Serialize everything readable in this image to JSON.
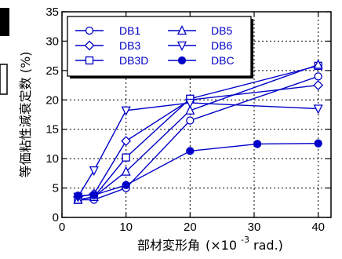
{
  "chart_data": {
    "type": "line",
    "xlabel_main": "部材変形角",
    "xlabel_unit": "(×10",
    "xlabel_exp": "-3",
    "xlabel_tail": "rad.)",
    "ylabel": "等価粘性減衰定数 (%)",
    "xlim": [
      0,
      42
    ],
    "ylim": [
      0,
      35
    ],
    "x_ticks": [
      0,
      10,
      20,
      30,
      40
    ],
    "y_ticks": [
      0,
      5,
      10,
      15,
      20,
      25,
      30,
      35
    ],
    "grid": true,
    "grid_style": "dotted",
    "legend_position": "top-left",
    "line_color": "#0000c8",
    "series": [
      {
        "name": "DB1",
        "marker": "circle-open",
        "x": [
          2.5,
          5,
          10,
          20,
          40
        ],
        "y": [
          3.0,
          3.0,
          5.0,
          16.5,
          24.0
        ]
      },
      {
        "name": "DB3",
        "marker": "diamond-open",
        "x": [
          2.5,
          5,
          10,
          20,
          40
        ],
        "y": [
          3.5,
          4.0,
          13.0,
          20.0,
          22.5
        ]
      },
      {
        "name": "DB3D",
        "marker": "square-open",
        "x": [
          2.5,
          5,
          10,
          20,
          40
        ],
        "y": [
          3.0,
          3.5,
          10.2,
          20.2,
          25.8
        ]
      },
      {
        "name": "DB5",
        "marker": "triangle-up-open",
        "x": [
          2.5,
          5,
          10,
          20,
          40
        ],
        "y": [
          3.0,
          3.5,
          7.8,
          18.2,
          26.0
        ]
      },
      {
        "name": "DB6",
        "marker": "triangle-down-open",
        "x": [
          2.5,
          5,
          10,
          20,
          40
        ],
        "y": [
          3.5,
          8.0,
          18.2,
          19.5,
          18.5
        ]
      },
      {
        "name": "DBC",
        "marker": "circle-filled",
        "x": [
          2.5,
          5,
          10,
          20,
          30.5,
          40
        ],
        "y": [
          3.7,
          3.8,
          5.5,
          11.3,
          12.5,
          12.6
        ]
      }
    ],
    "legend_layout": [
      [
        "DB1",
        "DB5"
      ],
      [
        "DB3",
        "DB6"
      ],
      [
        "DB3D",
        "DBC"
      ]
    ]
  }
}
